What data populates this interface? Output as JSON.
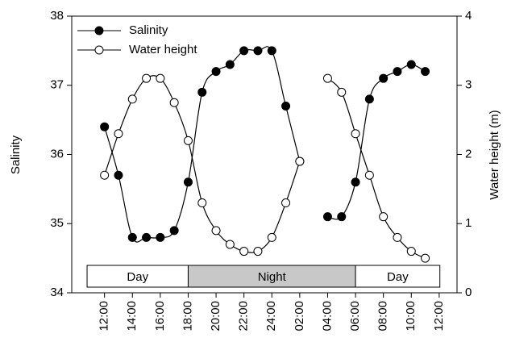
{
  "chart_data": {
    "type": "line",
    "y_label": "Salinity",
    "y2_label": "Water height (m)",
    "x": [
      12,
      13,
      14,
      15,
      16,
      17,
      18,
      19,
      20,
      21,
      22,
      23,
      24,
      25,
      26,
      27,
      28,
      29,
      30,
      31,
      32,
      33,
      34,
      35
    ],
    "xlim": [
      9.65,
      37.28
    ],
    "xticks": [
      {
        "value": 12,
        "label": "12:00"
      },
      {
        "value": 14,
        "label": "14:00"
      },
      {
        "value": 16,
        "label": "16:00"
      },
      {
        "value": 18,
        "label": "18:00"
      },
      {
        "value": 20,
        "label": "20:00"
      },
      {
        "value": 22,
        "label": "22:00"
      },
      {
        "value": 24,
        "label": "24:00"
      },
      {
        "value": 26,
        "label": "02:00"
      },
      {
        "value": 28,
        "label": "04:00"
      },
      {
        "value": 30,
        "label": "06:00"
      },
      {
        "value": 32,
        "label": "08:00"
      },
      {
        "value": 34,
        "label": "10:00"
      },
      {
        "value": 36,
        "label": "12:00"
      }
    ],
    "ylim": [
      34,
      38
    ],
    "yticks": [
      34,
      35,
      36,
      37,
      38
    ],
    "y2lim": [
      0,
      4
    ],
    "y2ticks": [
      0,
      1,
      2,
      3,
      4
    ],
    "series": [
      {
        "name": "Salinity",
        "color": "#000000",
        "marker": "filled",
        "values": [
          36.4,
          35.7,
          34.8,
          34.8,
          34.8,
          34.9,
          35.6,
          36.9,
          37.2,
          37.3,
          37.5,
          37.5,
          37.5,
          36.7,
          35.9,
          null,
          35.1,
          35.1,
          35.6,
          36.8,
          37.1,
          37.2,
          37.3,
          37.2
        ]
      },
      {
        "name": "Water height",
        "color": "#000000",
        "marker": "open",
        "axis": "y2",
        "values": [
          1.7,
          2.3,
          2.8,
          3.1,
          3.1,
          2.75,
          2.2,
          1.3,
          0.9,
          0.7,
          0.6,
          0.6,
          0.8,
          1.3,
          1.9,
          null,
          3.1,
          2.9,
          2.3,
          1.7,
          1.1,
          0.8,
          0.6,
          0.5
        ]
      }
    ],
    "bands": [
      {
        "label": "Day",
        "start": 10.75,
        "end": 18,
        "color": "#ffffff"
      },
      {
        "label": "Night",
        "start": 18,
        "end": 30,
        "color": "#c8c8c8"
      },
      {
        "label": "Day",
        "start": 30,
        "end": 36.05,
        "color": "#ffffff"
      }
    ],
    "legend": "upper left"
  }
}
